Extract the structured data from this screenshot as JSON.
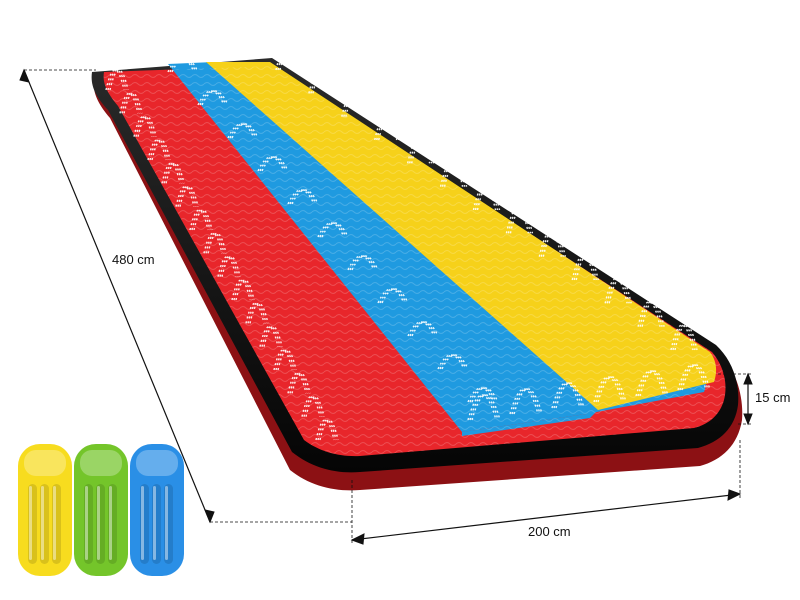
{
  "product": {
    "stripes": [
      "red",
      "blue",
      "yellow"
    ],
    "colors": {
      "red": "#e8262b",
      "blue": "#1f9ae0",
      "yellow": "#f6d11a",
      "rim": "#151515",
      "water": "#ffffff"
    }
  },
  "dimensions": {
    "length": "480 cm",
    "width": "200 cm",
    "height": "15 cm"
  },
  "bodyboards": [
    {
      "color_name": "yellow",
      "color": "#f7dc1f"
    },
    {
      "color_name": "green",
      "color": "#74c52a"
    },
    {
      "color_name": "blue",
      "color": "#2a8fe6"
    }
  ]
}
